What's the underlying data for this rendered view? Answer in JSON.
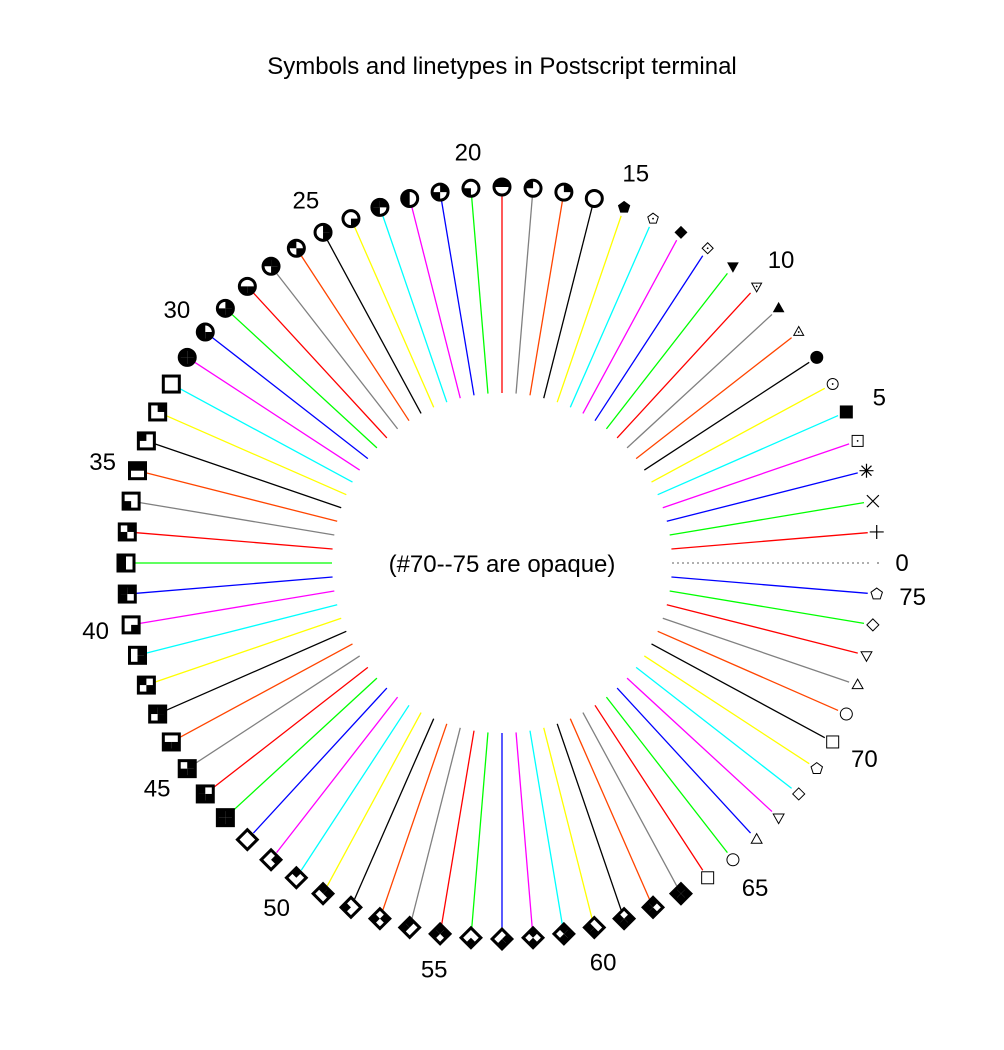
{
  "chart_data": {
    "type": "line",
    "title": "Symbols and linetypes in Postscript terminal",
    "annotation": "(#70--75 are opaque)",
    "linetype_count": 76,
    "labeled_every": 5,
    "line_colors": [
      "#ff0000",
      "#00ff00",
      "#0000ff",
      "#ff00ff",
      "#00ffff",
      "#ffff00",
      "#000000",
      "#ff4500",
      "#808080"
    ],
    "linetype_0": {
      "style": "dotted",
      "color": "#808080",
      "symbol": "dot"
    },
    "symbols": {
      "1": "plus",
      "2": "cross",
      "3": "star",
      "4": "box-dot",
      "5": "filled-box",
      "6": "circle-dot",
      "7": "filled-circle",
      "8": "triangle-dot",
      "9": "filled-triangle",
      "10": "down-triangle-dot",
      "11": "filled-down-triangle",
      "12": "diamond-dot",
      "13": "filled-diamond",
      "14": "pentagon-dot",
      "15": "filled-pentagon",
      "16-31": "circle quadrant variants",
      "32-47": "box quadrant variants",
      "48-63": "diamond quadrant variants",
      "64": "open-box",
      "65": "open-circle",
      "66": "open-triangle",
      "67": "open-down-triangle",
      "68": "open-diamond",
      "69": "open-pentagon",
      "70": "opaque-box",
      "71": "opaque-circle",
      "72": "opaque-triangle",
      "73": "opaque-down-triangle",
      "74": "opaque-diamond",
      "75": "opaque-pentagon"
    },
    "labels": [
      "0",
      "5",
      "10",
      "15",
      "20",
      "25",
      "30",
      "35",
      "40",
      "45",
      "50",
      "55",
      "60",
      "65",
      "70",
      "75"
    ]
  }
}
